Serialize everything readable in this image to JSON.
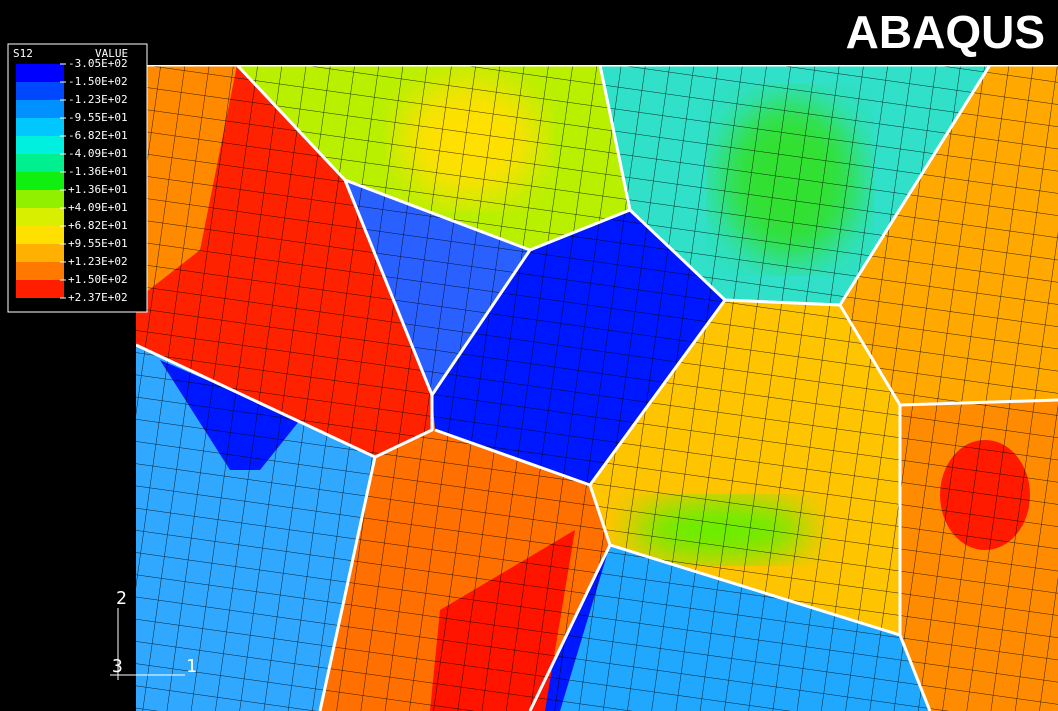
{
  "header": {
    "title": "ABAQUS"
  },
  "legend": {
    "variable": "S12",
    "heading": "VALUE",
    "levels": [
      "-3.05E+02",
      "-1.50E+02",
      "-1.23E+02",
      "-9.55E+01",
      "-6.82E+01",
      "-4.09E+01",
      "-1.36E+01",
      "+1.36E+01",
      "+4.09E+01",
      "+6.82E+01",
      "+9.55E+01",
      "+1.23E+02",
      "+1.50E+02",
      "+2.37E+02"
    ]
  },
  "triad": {
    "axis_2": "2",
    "axis_3": "3",
    "axis_1": "1"
  }
}
